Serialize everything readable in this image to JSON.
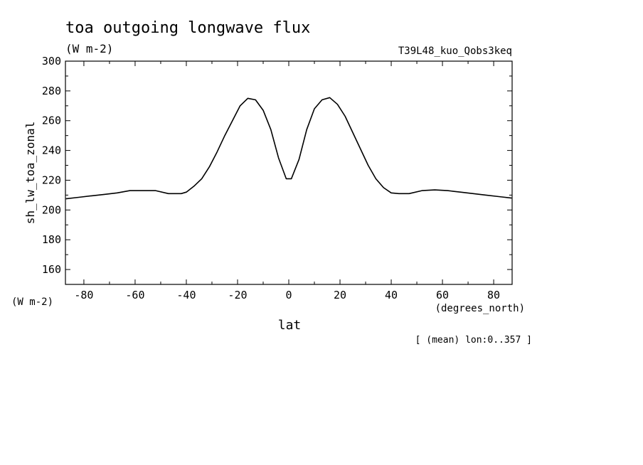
{
  "chart_data": {
    "type": "line",
    "title": "toa outgoing longwave flux",
    "units": "(W m-2)",
    "experiment": "T39L48_kuo_Qobs3keq",
    "ylabel": "sh_lw_toa_zonal",
    "yunits": "(W m-2)",
    "xlabel": "lat",
    "xunits": "(degrees_north)",
    "footnote": "[ (mean) lon:0..357 ]",
    "xlim": [
      -87.2,
      87.2
    ],
    "ylim": [
      150,
      300
    ],
    "xticks": [
      -80,
      -60,
      -40,
      -20,
      0,
      20,
      40,
      60,
      80
    ],
    "xtick_labels": [
      "-80",
      "-60",
      "-40",
      "-20",
      "0",
      "20",
      "40",
      "60",
      "80"
    ],
    "yticks": [
      160,
      180,
      200,
      220,
      240,
      260,
      280,
      300
    ],
    "ytick_labels": [
      "160",
      "180",
      "200",
      "220",
      "240",
      "260",
      "280",
      "300"
    ],
    "grid": false,
    "series": [
      {
        "x": [
          -87,
          -82,
          -77,
          -72,
          -67,
          -62,
          -57,
          -52,
          -47,
          -42,
          -40,
          -37,
          -34,
          -31,
          -28,
          -25,
          -22,
          -19,
          -16,
          -13,
          -10,
          -7,
          -4,
          -1,
          1,
          4,
          7,
          10,
          13,
          16,
          19,
          22,
          25,
          28,
          31,
          34,
          37,
          40,
          43,
          47,
          52,
          57,
          62,
          67,
          72,
          77,
          82,
          87
        ],
        "y": [
          207.5,
          208.5,
          209.5,
          210.5,
          211.5,
          213,
          213,
          213,
          211,
          211,
          212,
          216,
          221,
          229,
          239,
          250,
          260,
          270,
          275,
          274,
          267,
          254,
          235,
          221,
          221,
          234,
          254,
          268,
          274,
          275.5,
          271,
          263,
          252,
          241,
          230,
          221,
          215,
          211.5,
          211,
          211,
          213,
          213.5,
          213,
          212,
          211,
          210,
          209,
          208
        ]
      }
    ]
  }
}
